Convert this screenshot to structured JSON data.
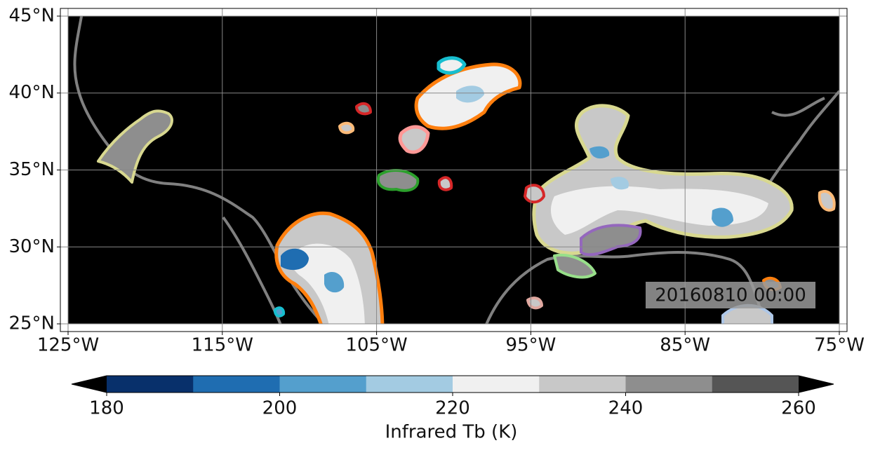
{
  "map": {
    "xlim": [
      -125.5,
      -74.5
    ],
    "ylim": [
      24.5,
      45.5
    ],
    "xticks": [
      {
        "value": -125,
        "label": "125°W"
      },
      {
        "value": -115,
        "label": "115°W"
      },
      {
        "value": -105,
        "label": "105°W"
      },
      {
        "value": -95,
        "label": "95°W"
      },
      {
        "value": -85,
        "label": "85°W"
      },
      {
        "value": -75,
        "label": "75°W"
      }
    ],
    "yticks": [
      {
        "value": 25,
        "label": "25°N"
      },
      {
        "value": 30,
        "label": "30°N"
      },
      {
        "value": 35,
        "label": "35°N"
      },
      {
        "value": 40,
        "label": "40°N"
      },
      {
        "value": 45,
        "label": "45°N"
      }
    ],
    "grid": true,
    "timestamp": "20160810 00:00"
  },
  "colorbar": {
    "label": "Infrared Tb (K)",
    "lim": [
      180,
      260
    ],
    "ticks": [
      180,
      200,
      220,
      240,
      260
    ],
    "levels": [
      180,
      190,
      200,
      210,
      220,
      230,
      240,
      250,
      260
    ],
    "colors": [
      "#08306b",
      "#1f6db1",
      "#549fcd",
      "#a3cbe2",
      "#f0f0f0",
      "#c8c8c8",
      "#8e8e8e",
      "#555555"
    ],
    "under_color": "#000000",
    "over_color": "#000000"
  }
}
